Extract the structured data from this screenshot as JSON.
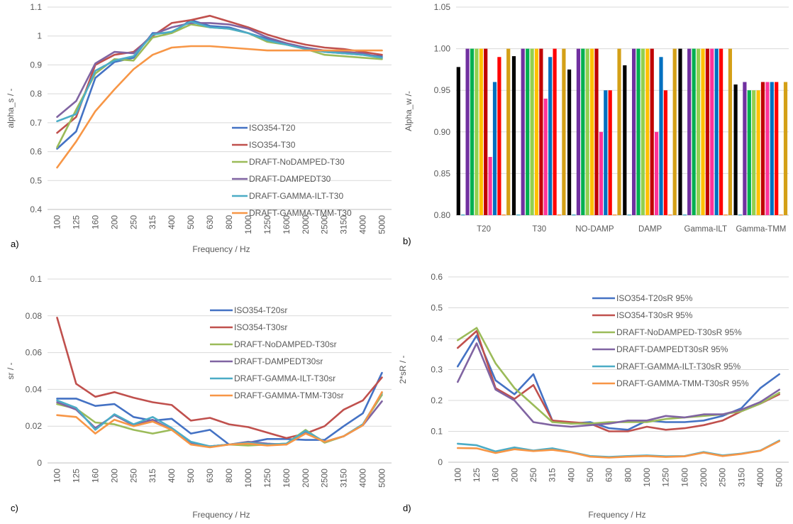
{
  "chart_data": [
    {
      "id": "a",
      "type": "line",
      "panel_label": "a)",
      "xlabel": "Frequency / Hz",
      "ylabel": "alpha_s / -",
      "ylim": [
        0.4,
        1.1
      ],
      "yticks": [
        "0.4",
        "0.5",
        "0.6",
        "0.7",
        "0.8",
        "0.9",
        "1",
        "1.1"
      ],
      "grid": "horizontal",
      "legend_position": "center-right",
      "categories": [
        "100",
        "125",
        "160",
        "200",
        "250",
        "315",
        "400",
        "500",
        "630",
        "800",
        "1000",
        "1250",
        "1600",
        "2000",
        "2500",
        "3150",
        "4000",
        "5000"
      ],
      "series": [
        {
          "name": "ISO354-T20",
          "color": "#4472C4",
          "values": [
            0.61,
            0.67,
            0.855,
            0.91,
            0.925,
            1.01,
            1.01,
            1.055,
            1.035,
            1.03,
            1.01,
            0.99,
            0.97,
            0.96,
            0.945,
            0.94,
            0.935,
            0.93
          ]
        },
        {
          "name": "ISO354-T30",
          "color": "#C0504D",
          "values": [
            0.665,
            0.72,
            0.9,
            0.935,
            0.945,
            1.0,
            1.045,
            1.055,
            1.07,
            1.05,
            1.03,
            1.005,
            0.985,
            0.97,
            0.96,
            0.955,
            0.945,
            0.935
          ]
        },
        {
          "name": "DRAFT-NoDAMPED-T30",
          "color": "#9BBB59",
          "values": [
            0.615,
            0.745,
            0.87,
            0.92,
            0.915,
            0.995,
            1.01,
            1.04,
            1.03,
            1.025,
            1.01,
            0.98,
            0.97,
            0.955,
            0.935,
            0.93,
            0.925,
            0.92
          ]
        },
        {
          "name": "DRAFT-DAMPEDT30",
          "color": "#8064A2",
          "values": [
            0.72,
            0.775,
            0.905,
            0.945,
            0.94,
            1.005,
            1.03,
            1.045,
            1.045,
            1.04,
            1.025,
            0.995,
            0.975,
            0.96,
            0.95,
            0.945,
            0.94,
            0.925
          ]
        },
        {
          "name": "DRAFT-GAMMA-ILT-T30",
          "color": "#4BACC6",
          "values": [
            0.705,
            0.73,
            0.88,
            0.915,
            0.93,
            1.005,
            1.015,
            1.05,
            1.03,
            1.025,
            1.01,
            0.985,
            0.97,
            0.955,
            0.945,
            0.94,
            0.935,
            0.925
          ]
        },
        {
          "name": "DRAFT-GAMMA-TMM-T30",
          "color": "#F79646",
          "values": [
            0.545,
            0.635,
            0.74,
            0.815,
            0.885,
            0.935,
            0.96,
            0.965,
            0.965,
            0.96,
            0.955,
            0.95,
            0.95,
            0.95,
            0.95,
            0.95,
            0.95,
            0.95
          ]
        }
      ]
    },
    {
      "id": "b",
      "type": "bar",
      "panel_label": "b)",
      "xlabel": "",
      "ylabel": "Alpha_w /-",
      "ylim": [
        0.8,
        1.05
      ],
      "yticks": [
        "0.80",
        "0.85",
        "0.90",
        "0.95",
        "1.00",
        "1.05"
      ],
      "grid": "horizontal",
      "categories": [
        "T20",
        "T30",
        "NO-DAMP",
        "DAMP",
        "Gamma-ILT",
        "Gamma-TMM"
      ],
      "series": [
        {
          "color": "#000000",
          "values": [
            0.978,
            0.991,
            0.975,
            0.98,
            1.0,
            0.957
          ]
        },
        {
          "color": "#4BACC6",
          "values": [
            0.8,
            0.8,
            0.8,
            0.8,
            0.8,
            0.8
          ]
        },
        {
          "color": "#7030A0",
          "values": [
            1.0,
            1.0,
            1.0,
            1.0,
            1.0,
            0.96
          ]
        },
        {
          "color": "#00B050",
          "values": [
            1.0,
            1.0,
            1.0,
            1.0,
            1.0,
            0.95
          ]
        },
        {
          "color": "#92D050",
          "values": [
            1.0,
            1.0,
            1.0,
            1.0,
            1.0,
            0.95
          ]
        },
        {
          "color": "#FFC000",
          "values": [
            1.0,
            1.0,
            1.0,
            1.0,
            1.0,
            0.95
          ]
        },
        {
          "color": "#C00000",
          "values": [
            1.0,
            1.0,
            1.0,
            1.0,
            1.0,
            0.96
          ]
        },
        {
          "color": "#FF3399",
          "values": [
            0.87,
            0.94,
            0.9,
            0.9,
            1.0,
            0.96
          ]
        },
        {
          "color": "#0070C0",
          "values": [
            0.96,
            0.99,
            0.95,
            0.99,
            1.0,
            0.96
          ]
        },
        {
          "color": "#FF0000",
          "values": [
            0.99,
            1.0,
            0.95,
            0.95,
            1.0,
            0.96
          ]
        },
        {
          "color": "#F79646",
          "values": [
            0.8,
            0.8,
            0.8,
            0.8,
            0.8,
            0.8
          ]
        },
        {
          "color": "#D4A017",
          "values": [
            1.0,
            1.0,
            1.0,
            1.0,
            1.0,
            0.96
          ]
        }
      ]
    },
    {
      "id": "c",
      "type": "line",
      "panel_label": "c)",
      "xlabel": "Frequency / Hz",
      "ylabel": "sr / -",
      "ylim": [
        0,
        0.1
      ],
      "yticks": [
        "0",
        "0.02",
        "0.04",
        "0.06",
        "0.08",
        "0.1"
      ],
      "grid": "horizontal",
      "legend_position": "top-right",
      "categories": [
        "100",
        "125",
        "160",
        "200",
        "250",
        "315",
        "400",
        "500",
        "630",
        "800",
        "1000",
        "1250",
        "1600",
        "2000",
        "2500",
        "3150",
        "4000",
        "5000"
      ],
      "series": [
        {
          "name": "ISO354-T20sr",
          "color": "#4472C4",
          "values": [
            0.035,
            0.035,
            0.031,
            0.032,
            0.025,
            0.023,
            0.024,
            0.016,
            0.018,
            0.01,
            0.011,
            0.013,
            0.013,
            0.0125,
            0.0125,
            0.02,
            0.027,
            0.049
          ]
        },
        {
          "name": "ISO354-T30sr",
          "color": "#C0504D",
          "values": [
            0.079,
            0.043,
            0.036,
            0.0385,
            0.0355,
            0.033,
            0.0315,
            0.023,
            0.0245,
            0.021,
            0.0195,
            0.0165,
            0.0135,
            0.016,
            0.02,
            0.029,
            0.034,
            0.0465
          ]
        },
        {
          "name": "DRAFT-NoDAMPED-T30sr",
          "color": "#9BBB59",
          "values": [
            0.032,
            0.0295,
            0.022,
            0.021,
            0.018,
            0.016,
            0.018,
            0.0105,
            0.009,
            0.01,
            0.0095,
            0.01,
            0.0105,
            0.018,
            0.011,
            0.0145,
            0.021,
            0.037
          ]
        },
        {
          "name": "DRAFT-DAMPEDT30sr",
          "color": "#8064A2",
          "values": [
            0.033,
            0.029,
            0.019,
            0.026,
            0.0205,
            0.0235,
            0.018,
            0.011,
            0.009,
            0.01,
            0.0115,
            0.0105,
            0.01,
            0.017,
            0.0115,
            0.0145,
            0.0205,
            0.0335
          ]
        },
        {
          "name": "DRAFT-GAMMA-ILT-T30sr",
          "color": "#4BACC6",
          "values": [
            0.034,
            0.03,
            0.018,
            0.0265,
            0.021,
            0.025,
            0.019,
            0.0115,
            0.009,
            0.01,
            0.011,
            0.01,
            0.0105,
            0.0175,
            0.0115,
            0.0145,
            0.021,
            0.038
          ]
        },
        {
          "name": "DRAFT-GAMMA-TMM-T30sr",
          "color": "#F79646",
          "values": [
            0.026,
            0.025,
            0.016,
            0.0235,
            0.02,
            0.0225,
            0.018,
            0.01,
            0.0085,
            0.01,
            0.0105,
            0.0095,
            0.01,
            0.016,
            0.0115,
            0.0145,
            0.0205,
            0.0385
          ]
        }
      ]
    },
    {
      "id": "d",
      "type": "line",
      "panel_label": "d)",
      "xlabel": "Frequency / Hz",
      "ylabel": "2*sR / -",
      "ylim": [
        0,
        0.6
      ],
      "yticks": [
        "0",
        "0.1",
        "0.2",
        "0.3",
        "0.4",
        "0.5",
        "0.6"
      ],
      "grid": "horizontal",
      "legend_position": "top-center",
      "categories": [
        "100",
        "125",
        "160",
        "200",
        "250",
        "315",
        "400",
        "500",
        "630",
        "800",
        "1000",
        "1250",
        "1600",
        "2000",
        "2500",
        "3150",
        "4000",
        "5000"
      ],
      "series": [
        {
          "name": "ISO354-T20sR 95%",
          "color": "#4472C4",
          "values": [
            0.31,
            0.41,
            0.265,
            0.22,
            0.285,
            0.135,
            0.125,
            0.13,
            0.11,
            0.105,
            0.135,
            0.13,
            0.13,
            0.135,
            0.15,
            0.175,
            0.24,
            0.285
          ]
        },
        {
          "name": "ISO354-T30sR 95%",
          "color": "#C0504D",
          "values": [
            0.37,
            0.425,
            0.24,
            0.205,
            0.25,
            0.135,
            0.13,
            0.125,
            0.1,
            0.1,
            0.115,
            0.105,
            0.11,
            0.12,
            0.135,
            0.165,
            0.19,
            0.22
          ]
        },
        {
          "name": "DRAFT-NoDAMPED-T30sR 95%",
          "color": "#9BBB59",
          "values": [
            0.395,
            0.435,
            0.32,
            0.24,
            0.185,
            0.13,
            0.125,
            0.125,
            0.13,
            0.13,
            0.13,
            0.14,
            0.145,
            0.15,
            0.155,
            0.165,
            0.19,
            0.225
          ]
        },
        {
          "name": "DRAFT-DAMPEDT30sR 95%",
          "color": "#8064A2",
          "values": [
            0.26,
            0.385,
            0.235,
            0.2,
            0.13,
            0.12,
            0.115,
            0.12,
            0.125,
            0.135,
            0.135,
            0.15,
            0.145,
            0.155,
            0.155,
            0.17,
            0.195,
            0.235
          ]
        },
        {
          "name": "DRAFT-GAMMA-ILT-T30sR 95%",
          "color": "#4BACC6",
          "values": [
            0.06,
            0.055,
            0.035,
            0.048,
            0.038,
            0.045,
            0.033,
            0.02,
            0.017,
            0.02,
            0.022,
            0.019,
            0.02,
            0.033,
            0.022,
            0.028,
            0.038,
            0.07
          ]
        },
        {
          "name": "DRAFT-GAMMA-TMM-T30sR 95%",
          "color": "#F79646",
          "values": [
            0.046,
            0.045,
            0.03,
            0.042,
            0.036,
            0.04,
            0.032,
            0.018,
            0.015,
            0.018,
            0.02,
            0.017,
            0.019,
            0.031,
            0.02,
            0.027,
            0.037,
            0.068
          ]
        }
      ]
    }
  ]
}
